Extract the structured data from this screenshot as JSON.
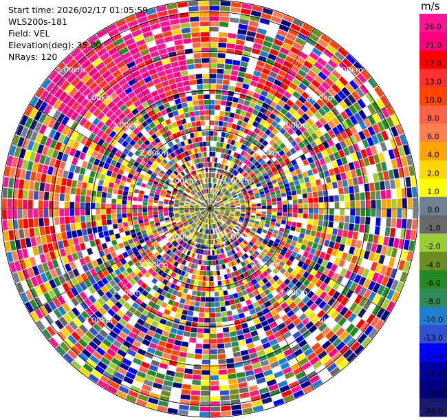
{
  "info": {
    "start_time": "Start time: 2026/02/17 01:05:59",
    "instrument": "WLS200s-181",
    "field": "Field: VEL",
    "elevation": "Elevation(deg): 35.00",
    "nrays": "NRays: 120"
  },
  "chart_data": {
    "type": "heatmap",
    "projection": "polar PPI",
    "field": "VEL",
    "unit_label": "m/s",
    "n_rays": 120,
    "range_rings_km": [
      1,
      2,
      3,
      4,
      5
    ],
    "range_labels": [
      "1.00km",
      "1.00km",
      "1.00km",
      "1.00km",
      "2.00km",
      "2.00km",
      "2.00km",
      "2.00km",
      "3.00km",
      "3.00km",
      "3.00km",
      "3.00km",
      "4.00km",
      "4.00km",
      "4.00km",
      "4.00km",
      "5.00km",
      "5.00km"
    ],
    "colorbar": {
      "ticks": [
        "26.0",
        "21.0",
        "17.0",
        "13.0",
        "10.0",
        "8.0",
        "6.0",
        "4.0",
        "2.0",
        "1.0",
        "0.0",
        "-1.0",
        "-2.0",
        "-4.0",
        "-6.0",
        "-8.0",
        "-10.0",
        "-13.0",
        "-17.0",
        "-21.0",
        "-26.0",
        "-30.0"
      ],
      "colors": [
        "#ff1493",
        "#ff007f",
        "#ff0000",
        "#ff3030",
        "#ff4500",
        "#ff6347",
        "#ff7f50",
        "#ffa500",
        "#ffd700",
        "#ffff00",
        "#708090",
        "#696969",
        "#9acd32",
        "#6b8e23",
        "#228b22",
        "#2e8b57",
        "#1e7fd0",
        "#3050d0",
        "#0000ff",
        "#0000a0",
        "#000080",
        "#191970"
      ]
    }
  }
}
